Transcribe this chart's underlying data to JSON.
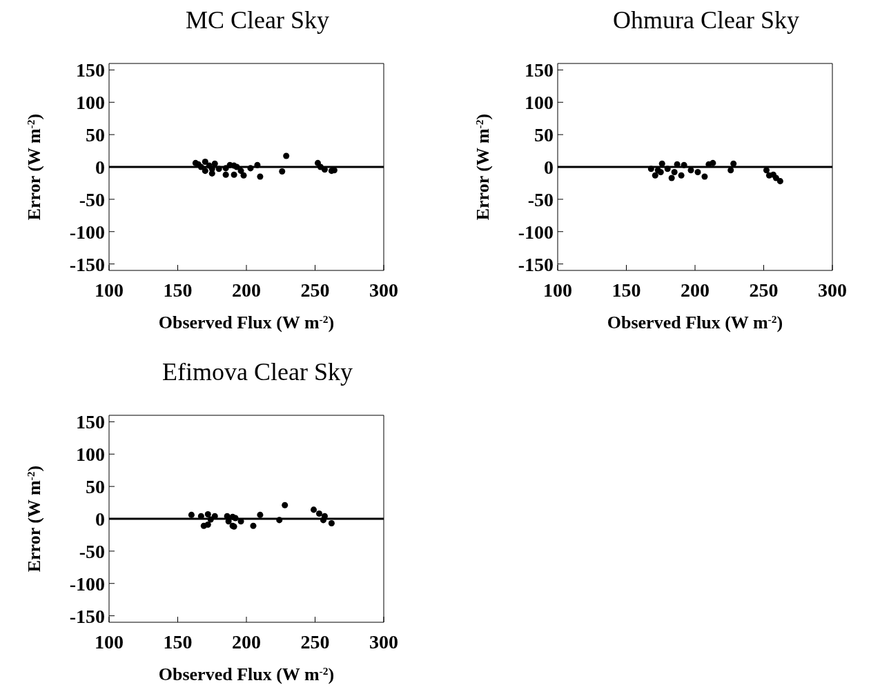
{
  "chart_data": [
    {
      "type": "scatter",
      "title": "MC Clear Sky",
      "xlabel": "Observed Flux (W m$^{-2}$)",
      "ylabel": "Error (W m$^{-2}$)",
      "marker": "circle",
      "color": "#000000",
      "xlim": [
        100,
        300
      ],
      "xticks": [
        100,
        150,
        200,
        250,
        300
      ],
      "ylim": [
        -160,
        160
      ],
      "yticks": [
        -150,
        -100,
        -50,
        0,
        50,
        100,
        150
      ],
      "ref_lines": [
        {
          "axis": "y",
          "value": 0,
          "color": "#000000"
        }
      ],
      "x": [
        163,
        165,
        170,
        173,
        175,
        177,
        175,
        180,
        185,
        188,
        191,
        193,
        185,
        191,
        196,
        198,
        203,
        208,
        210,
        229,
        226,
        252,
        254,
        257,
        262,
        264,
        170,
        167
      ],
      "values": [
        6,
        4,
        8,
        2,
        -3,
        5,
        -10,
        -3,
        -2,
        3,
        2,
        0,
        -12,
        -12,
        -6,
        -13,
        -2,
        3,
        -15,
        17,
        -7,
        6,
        0,
        -4,
        -6,
        -5,
        -6,
        0
      ]
    },
    {
      "type": "scatter",
      "title": "Ohmura Clear Sky",
      "xlabel": "Observed Flux (W m$^{-2}$)",
      "ylabel": "Error (W m$^{-2}$)",
      "marker": "circle",
      "color": "#000000",
      "xlim": [
        100,
        300
      ],
      "xticks": [
        100,
        150,
        200,
        250,
        300
      ],
      "ylim": [
        -160,
        160
      ],
      "yticks": [
        -150,
        -100,
        -50,
        0,
        50,
        100,
        150
      ],
      "ref_lines": [
        {
          "axis": "y",
          "value": 0,
          "color": "#000000"
        }
      ],
      "x": [
        168,
        173,
        176,
        171,
        180,
        187,
        190,
        192,
        185,
        197,
        202,
        207,
        210,
        213,
        228,
        226,
        252,
        254,
        259,
        262,
        257,
        175,
        183
      ],
      "values": [
        -3,
        -5,
        5,
        -13,
        -3,
        4,
        -13,
        3,
        -8,
        -5,
        -8,
        -15,
        4,
        6,
        5,
        -5,
        -5,
        -13,
        -17,
        -22,
        -12,
        -8,
        -17
      ]
    },
    {
      "type": "scatter",
      "title": "Efimova Clear Sky",
      "xlabel": "Observed Flux (W m$^{-2}$)",
      "ylabel": "Error (W m$^{-2}$)",
      "marker": "circle",
      "color": "#000000",
      "xlim": [
        100,
        300
      ],
      "xticks": [
        100,
        150,
        200,
        250,
        300
      ],
      "ylim": [
        -160,
        160
      ],
      "yticks": [
        -150,
        -100,
        -50,
        0,
        50,
        100,
        150
      ],
      "ref_lines": [
        {
          "axis": "y",
          "value": 0,
          "color": "#000000"
        }
      ],
      "x": [
        160,
        167,
        172,
        174,
        172,
        177,
        186,
        190,
        192,
        187,
        190,
        191,
        196,
        205,
        210,
        228,
        224,
        249,
        253,
        257,
        262,
        256,
        169
      ],
      "values": [
        6,
        4,
        7,
        -1,
        -9,
        4,
        4,
        3,
        1,
        -4,
        -11,
        -12,
        -4,
        -11,
        6,
        21,
        -2,
        14,
        8,
        4,
        -7,
        -2,
        -11
      ]
    }
  ]
}
